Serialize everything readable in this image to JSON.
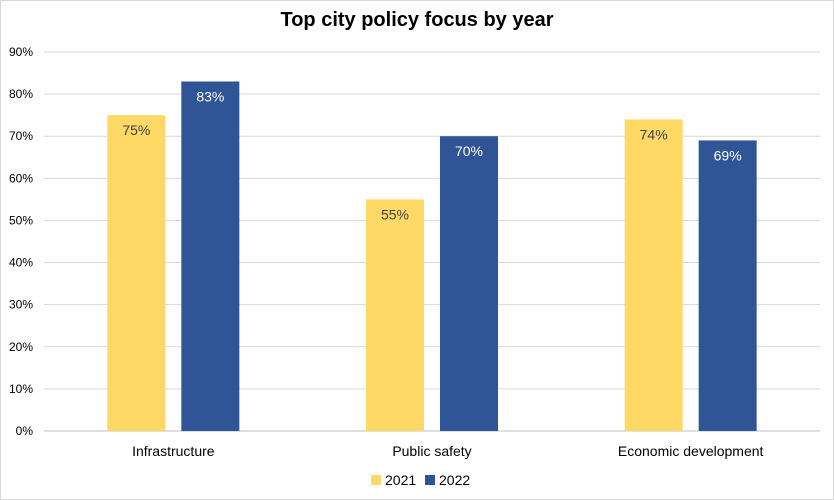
{
  "chart_data": {
    "type": "bar",
    "title": "Top city policy focus by year",
    "categories": [
      "Infrastructure",
      "Public safety",
      "Economic development"
    ],
    "series": [
      {
        "name": "2021",
        "values": [
          75,
          55,
          74
        ],
        "color": "#ffd966",
        "labels": [
          "75%",
          "55%",
          "74%"
        ]
      },
      {
        "name": "2022",
        "values": [
          83,
          70,
          69
        ],
        "color": "#2f5597",
        "labels": [
          "83%",
          "70%",
          "69%"
        ]
      }
    ],
    "y_ticks": [
      "0%",
      "10%",
      "20%",
      "30%",
      "40%",
      "50%",
      "60%",
      "70%",
      "80%",
      "90%"
    ],
    "ylim": [
      0,
      90
    ],
    "xlabel": "",
    "ylabel": "",
    "grid": true,
    "legend": "bottom-center"
  }
}
